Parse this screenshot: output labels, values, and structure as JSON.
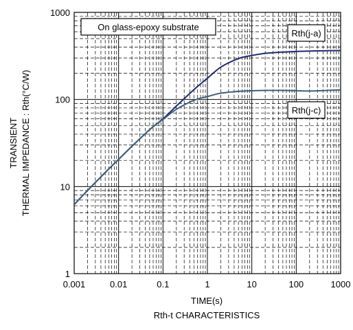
{
  "chart_data": {
    "type": "line",
    "title": "Rth-t CHARACTERISTICS",
    "xlabel": "TIME(s)",
    "ylabel_line1": "TRANSIENT",
    "ylabel_line2": "THERMAL IMPEDANCE : Rth(°C/W)",
    "x_scale": "log",
    "y_scale": "log",
    "xlim": [
      0.001,
      1000
    ],
    "ylim": [
      1,
      1000
    ],
    "x_ticks": [
      "0.001",
      "0.01",
      "0.1",
      "1",
      "10",
      "100",
      "1000"
    ],
    "y_ticks": [
      "1",
      "10",
      "100",
      "1000"
    ],
    "grid": true,
    "annotation": "On glass-epoxy substrate",
    "series": [
      {
        "name": "Rth(j-a)",
        "color": "#1f2a6e",
        "x": [
          0.001,
          0.002,
          0.005,
          0.01,
          0.02,
          0.05,
          0.1,
          0.2,
          0.5,
          1,
          2,
          5,
          10,
          20,
          50,
          100,
          200,
          500,
          1000
        ],
        "y": [
          6.2,
          9,
          14.5,
          20.5,
          29,
          45,
          60,
          84,
          130,
          175,
          235,
          295,
          320,
          338,
          350,
          356,
          360,
          363,
          365
        ]
      },
      {
        "name": "Rth(j-c)",
        "color": "#3a5f7d",
        "x": [
          0.001,
          0.002,
          0.005,
          0.01,
          0.02,
          0.05,
          0.1,
          0.2,
          0.5,
          1,
          2,
          5,
          10,
          20,
          50,
          100,
          200,
          500,
          1000
        ],
        "y": [
          6.2,
          9,
          14.5,
          20.5,
          29,
          45,
          59,
          77,
          98,
          108,
          118,
          124,
          126,
          127,
          127,
          126,
          125,
          127,
          129
        ]
      }
    ]
  }
}
